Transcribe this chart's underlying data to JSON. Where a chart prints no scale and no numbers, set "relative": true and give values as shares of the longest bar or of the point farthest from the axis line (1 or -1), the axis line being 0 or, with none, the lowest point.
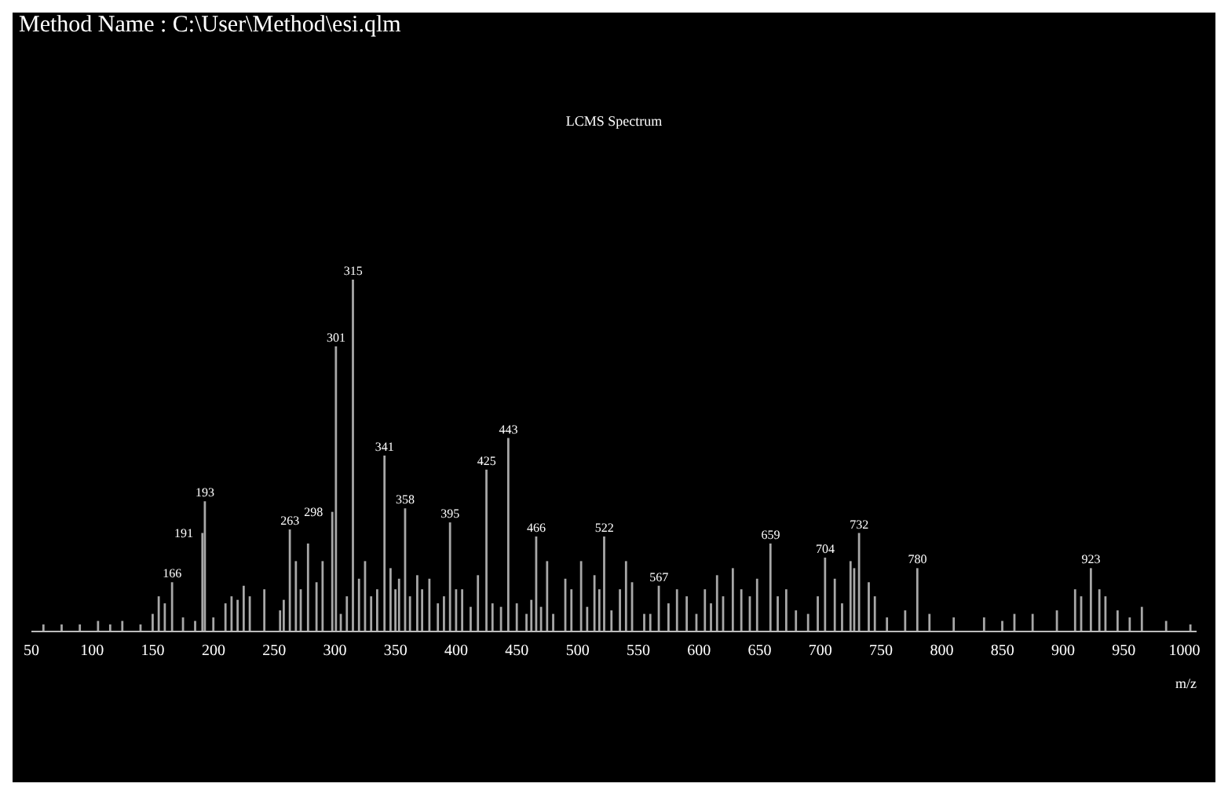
{
  "chart_data": {
    "type": "bar",
    "title": "LCMS Spectrum",
    "annotations": [
      "Method Name : C:\\User\\Method\\esi.qlm",
      {
        "text": "166",
        "x": 166,
        "y": 0.14
      },
      {
        "text": "191",
        "x": 191,
        "y": 0.28
      },
      {
        "text": "193",
        "x": 193,
        "y": 0.37
      },
      {
        "text": "263",
        "x": 263,
        "y": 0.29
      },
      {
        "text": "298",
        "x": 298,
        "y": 0.34
      },
      {
        "text": "301",
        "x": 301,
        "y": 0.81
      },
      {
        "text": "315",
        "x": 315,
        "y": 1
      },
      {
        "text": "341",
        "x": 341,
        "y": 0.5
      },
      {
        "text": "358",
        "x": 358,
        "y": 0.35
      },
      {
        "text": "395",
        "x": 395,
        "y": 0.31
      },
      {
        "text": "425",
        "x": 425,
        "y": 0.46
      },
      {
        "text": "443",
        "x": 443,
        "y": 0.55
      },
      {
        "text": "466",
        "x": 466,
        "y": 0.27
      },
      {
        "text": "522",
        "x": 522,
        "y": 0.27
      },
      {
        "text": "567",
        "x": 567,
        "y": 0.13
      },
      {
        "text": "659",
        "x": 659,
        "y": 0.25
      },
      {
        "text": "704",
        "x": 704,
        "y": 0.21
      },
      {
        "text": "732",
        "x": 732,
        "y": 0.28
      },
      {
        "text": "780",
        "x": 780,
        "y": 0.18
      },
      {
        "text": "923",
        "x": 923,
        "y": 0.18
      }
    ],
    "xlabel": "m/z",
    "x": [
      60,
      75,
      90,
      105,
      115,
      125,
      140,
      150,
      155,
      160,
      166,
      175,
      185,
      191,
      193,
      200,
      210,
      215,
      220,
      225,
      230,
      242,
      255,
      258,
      263,
      268,
      272,
      278,
      285,
      290,
      298,
      301,
      305,
      310,
      315,
      320,
      325,
      330,
      335,
      341,
      346,
      350,
      353,
      358,
      362,
      368,
      372,
      378,
      385,
      390,
      395,
      400,
      405,
      412,
      418,
      425,
      430,
      437,
      443,
      450,
      458,
      462,
      466,
      470,
      475,
      480,
      490,
      495,
      503,
      508,
      514,
      518,
      522,
      528,
      535,
      540,
      545,
      555,
      560,
      567,
      575,
      582,
      590,
      598,
      605,
      610,
      615,
      620,
      628,
      635,
      642,
      648,
      659,
      665,
      672,
      680,
      690,
      698,
      704,
      712,
      718,
      725,
      728,
      732,
      740,
      745,
      755,
      770,
      780,
      790,
      810,
      835,
      850,
      860,
      875,
      895,
      910,
      915,
      923,
      930,
      935,
      945,
      955,
      965,
      985,
      1005
    ],
    "values": [
      0.02,
      0.02,
      0.02,
      0.03,
      0.02,
      0.03,
      0.02,
      0.05,
      0.1,
      0.08,
      0.14,
      0.04,
      0.03,
      0.28,
      0.37,
      0.04,
      0.08,
      0.1,
      0.09,
      0.13,
      0.1,
      0.12,
      0.06,
      0.09,
      0.29,
      0.2,
      0.12,
      0.25,
      0.14,
      0.2,
      0.34,
      0.81,
      0.05,
      0.1,
      1,
      0.15,
      0.2,
      0.1,
      0.12,
      0.5,
      0.18,
      0.12,
      0.15,
      0.35,
      0.1,
      0.16,
      0.12,
      0.15,
      0.08,
      0.1,
      0.31,
      0.12,
      0.12,
      0.07,
      0.16,
      0.46,
      0.08,
      0.07,
      0.55,
      0.08,
      0.05,
      0.09,
      0.27,
      0.07,
      0.2,
      0.05,
      0.15,
      0.12,
      0.2,
      0.07,
      0.16,
      0.12,
      0.27,
      0.06,
      0.12,
      0.2,
      0.14,
      0.05,
      0.05,
      0.13,
      0.08,
      0.12,
      0.1,
      0.05,
      0.12,
      0.08,
      0.16,
      0.1,
      0.18,
      0.12,
      0.1,
      0.15,
      0.25,
      0.1,
      0.12,
      0.06,
      0.05,
      0.1,
      0.21,
      0.15,
      0.08,
      0.2,
      0.18,
      0.28,
      0.14,
      0.1,
      0.04,
      0.06,
      0.18,
      0.05,
      0.04,
      0.04,
      0.03,
      0.05,
      0.05,
      0.06,
      0.12,
      0.1,
      0.18,
      0.12,
      0.1,
      0.06,
      0.04,
      0.07,
      0.03,
      0.02
    ],
    "color": "#a8a8a8",
    "relative": true,
    "xlim": [
      50,
      1010
    ],
    "xticks": [
      50,
      100,
      150,
      200,
      250,
      300,
      350,
      400,
      450,
      500,
      550,
      600,
      650,
      700,
      750,
      800,
      850,
      900,
      950,
      1000
    ],
    "grid": false,
    "legend": false
  }
}
